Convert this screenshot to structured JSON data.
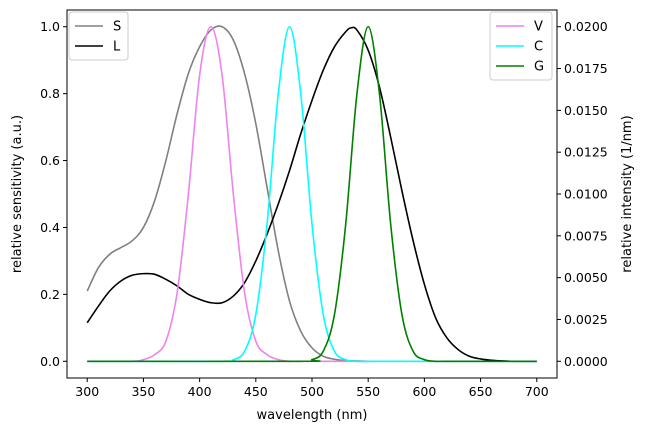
{
  "chart_data": {
    "type": "line",
    "xlabel": "wavelength (nm)",
    "ylabel_left": "relative sensitivity (a.u.)",
    "ylabel_right": "relative intensity (1/nm)",
    "xlim": [
      282,
      718
    ],
    "ylim_left": [
      -0.05,
      1.05
    ],
    "ylim_right": [
      -0.001,
      0.021
    ],
    "xticks": [
      300,
      350,
      400,
      450,
      500,
      550,
      600,
      650,
      700
    ],
    "yticks_left": [
      0.0,
      0.2,
      0.4,
      0.6,
      0.8,
      1.0
    ],
    "yticks_right": [
      0.0,
      0.0025,
      0.005,
      0.0075,
      0.01,
      0.0125,
      0.015,
      0.0175,
      0.02
    ],
    "yticklabels_left": [
      "0.0",
      "0.2",
      "0.4",
      "0.6",
      "0.8",
      "1.0"
    ],
    "yticklabels_right": [
      "0.0000",
      "0.0025",
      "0.0050",
      "0.0075",
      "0.0100",
      "0.0125",
      "0.0150",
      "0.0175",
      "0.0200"
    ],
    "grid": false,
    "legend_left_placement": "upper-left",
    "legend_right_placement": "upper-right",
    "series_left": [
      {
        "name": "S",
        "color": "#808080",
        "x": [
          300,
          310,
          320,
          330,
          340,
          350,
          360,
          370,
          380,
          390,
          400,
          410,
          420,
          430,
          440,
          450,
          460,
          470,
          480,
          490,
          500,
          510,
          520,
          530,
          540,
          550
        ],
        "y": [
          0.21,
          0.28,
          0.32,
          0.34,
          0.36,
          0.4,
          0.48,
          0.6,
          0.74,
          0.86,
          0.94,
          0.99,
          1.0,
          0.96,
          0.86,
          0.71,
          0.52,
          0.33,
          0.18,
          0.09,
          0.04,
          0.015,
          0.006,
          0.002,
          0.001,
          0.0
        ]
      },
      {
        "name": "L",
        "color": "#000000",
        "x": [
          300,
          310,
          320,
          330,
          340,
          350,
          360,
          370,
          380,
          390,
          400,
          410,
          420,
          430,
          440,
          450,
          460,
          470,
          480,
          490,
          500,
          510,
          520,
          530,
          535,
          540,
          550,
          560,
          570,
          580,
          590,
          600,
          610,
          620,
          630,
          640,
          650,
          660,
          670,
          680,
          690,
          700
        ],
        "y": [
          0.115,
          0.165,
          0.21,
          0.24,
          0.257,
          0.262,
          0.26,
          0.245,
          0.225,
          0.2,
          0.185,
          0.175,
          0.175,
          0.195,
          0.235,
          0.3,
          0.38,
          0.47,
          0.57,
          0.68,
          0.78,
          0.87,
          0.94,
          0.985,
          0.997,
          0.99,
          0.93,
          0.82,
          0.67,
          0.51,
          0.36,
          0.23,
          0.13,
          0.07,
          0.035,
          0.015,
          0.007,
          0.003,
          0.001,
          0.0,
          0.0,
          0.0
        ]
      }
    ],
    "series_right": [
      {
        "name": "V",
        "color": "#ee82ee",
        "x": [
          300,
          340,
          350,
          360,
          370,
          380,
          390,
          400,
          410,
          420,
          430,
          440,
          450,
          460,
          470,
          480,
          500,
          700
        ],
        "y": [
          0.0,
          0.0,
          0.0001,
          0.0004,
          0.0012,
          0.0041,
          0.01,
          0.0171,
          0.02,
          0.0171,
          0.01,
          0.0041,
          0.0012,
          0.0004,
          0.0001,
          0.0,
          0.0,
          0.0
        ]
      },
      {
        "name": "C",
        "color": "#00ffff",
        "x": [
          300,
          420,
          430,
          440,
          450,
          460,
          470,
          480,
          490,
          500,
          510,
          520,
          530,
          540,
          560,
          700
        ],
        "y": [
          0.0,
          0.0,
          0.0001,
          0.0006,
          0.0028,
          0.0082,
          0.016,
          0.02,
          0.016,
          0.0082,
          0.0028,
          0.0006,
          0.0001,
          0.0,
          0.0,
          0.0
        ]
      },
      {
        "name": "G",
        "color": "#008000",
        "x": [
          300,
          490,
          500,
          510,
          520,
          530,
          540,
          550,
          560,
          570,
          580,
          590,
          600,
          610,
          620,
          700
        ],
        "y": [
          0.0,
          0.0,
          0.0001,
          0.0006,
          0.0028,
          0.0082,
          0.016,
          0.02,
          0.016,
          0.0082,
          0.0028,
          0.0006,
          0.0001,
          0.0,
          0.0,
          0.0
        ]
      }
    ]
  }
}
